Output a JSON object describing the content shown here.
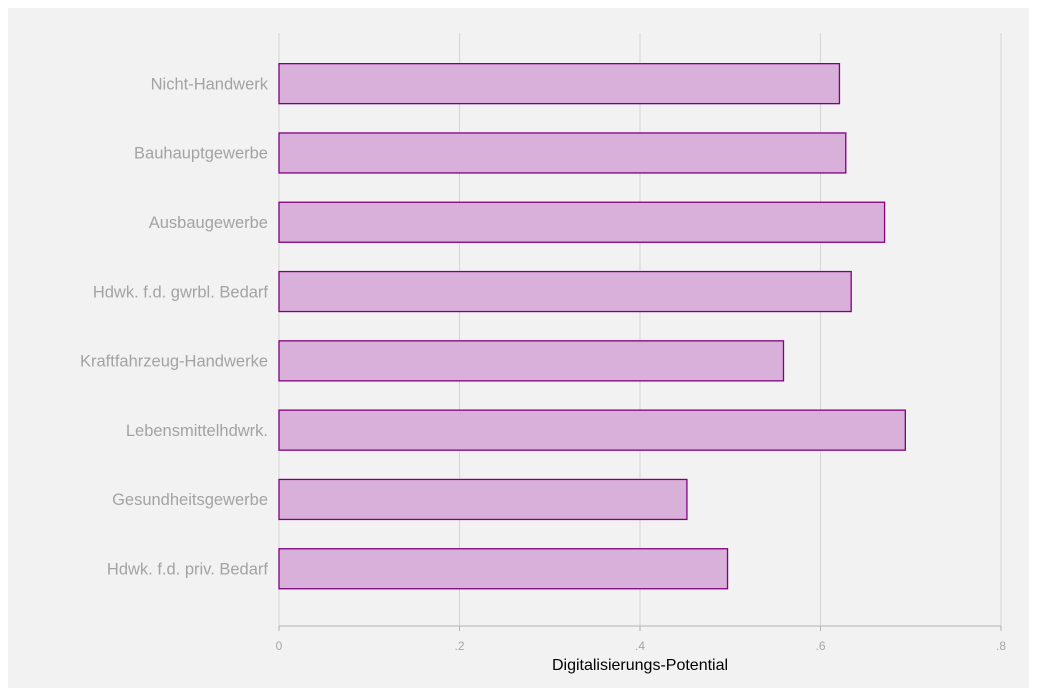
{
  "chart_data": {
    "type": "bar",
    "orientation": "horizontal",
    "categories": [
      "Nicht-Handwerk",
      "Bauhauptgewerbe",
      "Ausbaugewerbe",
      "Hdwk. f.d. gwrbl. Bedarf",
      "Kraftfahrzeug-Handwerke",
      "Lebensmittelhdwrk.",
      "Gesundheitsgewerbe",
      "Hdwk. f.d. priv. Bedarf"
    ],
    "values": [
      0.621,
      0.628,
      0.671,
      0.634,
      0.559,
      0.694,
      0.452,
      0.497
    ],
    "xlabel": "Digitalisierungs-Potential",
    "ylabel": "",
    "xlim": [
      0,
      0.8
    ],
    "x_ticks": [
      0,
      0.2,
      0.4,
      0.6,
      0.8
    ],
    "x_tick_labels": [
      "0",
      ".2",
      ".4",
      ".6",
      ".8"
    ],
    "grid": "vertical",
    "colors": {
      "plot_background": "#f2f2f2",
      "bar_fill": "#d9b0d9",
      "bar_edge": "#800080",
      "grid": "#d4d4d4",
      "axis": "#b3b3b3"
    }
  }
}
